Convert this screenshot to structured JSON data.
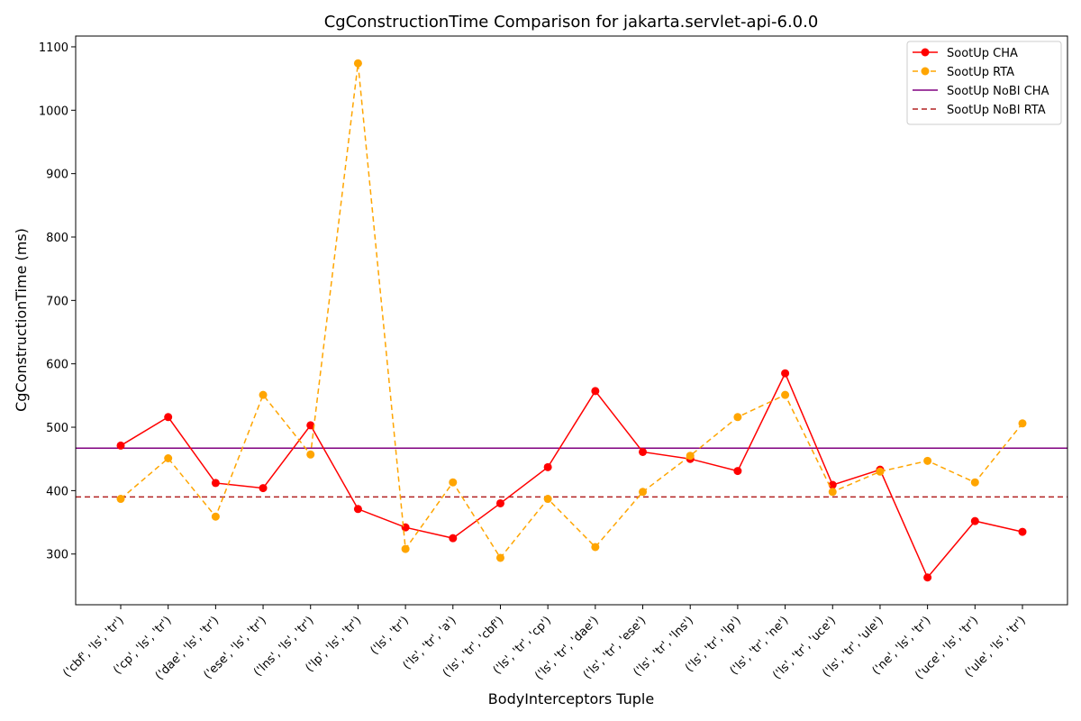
{
  "chart_data": {
    "type": "line",
    "title": "CgConstructionTime Comparison for jakarta.servlet-api-6.0.0",
    "xlabel": "BodyInterceptors Tuple",
    "ylabel": "CgConstructionTime (ms)",
    "ylim": [
      220,
      1117
    ],
    "yticks": [
      300,
      400,
      500,
      600,
      700,
      800,
      900,
      1000,
      1100
    ],
    "grid": false,
    "legend_position": "top-right",
    "categories": [
      "('cbf', 'ls', 'tr')",
      "('cp', 'ls', 'tr')",
      "('dae', 'ls', 'tr')",
      "('ese', 'ls', 'tr')",
      "('lns', 'ls', 'tr')",
      "('lp', 'ls', 'tr')",
      "('ls', 'tr')",
      "('ls', 'tr', 'a')",
      "('ls', 'tr', 'cbf')",
      "('ls', 'tr', 'cp')",
      "('ls', 'tr', 'dae')",
      "('ls', 'tr', 'ese')",
      "('ls', 'tr', 'lns')",
      "('ls', 'tr', 'lp')",
      "('ls', 'tr', 'ne')",
      "('ls', 'tr', 'uce')",
      "('ls', 'tr', 'ule')",
      "('ne', 'ls', 'tr')",
      "('uce', 'ls', 'tr')",
      "('ule', 'ls', 'tr')"
    ],
    "series": [
      {
        "name": "SootUp CHA",
        "color": "#ff0000",
        "style": "solid-marker",
        "values": [
          471,
          516,
          412,
          404,
          503,
          371,
          342,
          325,
          380,
          437,
          557,
          461,
          450,
          431,
          585,
          409,
          433,
          263,
          352,
          335
        ]
      },
      {
        "name": "SootUp RTA",
        "color": "#ffa500",
        "style": "dashed-marker",
        "values": [
          387,
          451,
          359,
          551,
          457,
          1074,
          308,
          413,
          294,
          387,
          311,
          398,
          455,
          516,
          551,
          398,
          430,
          447,
          413,
          506
        ]
      }
    ],
    "reference_lines": [
      {
        "name": "SootUp NoBI CHA",
        "color": "#800080",
        "style": "solid",
        "value": 467
      },
      {
        "name": "SootUp NoBI RTA",
        "color": "#b22222",
        "style": "dashed",
        "value": 390
      }
    ]
  }
}
